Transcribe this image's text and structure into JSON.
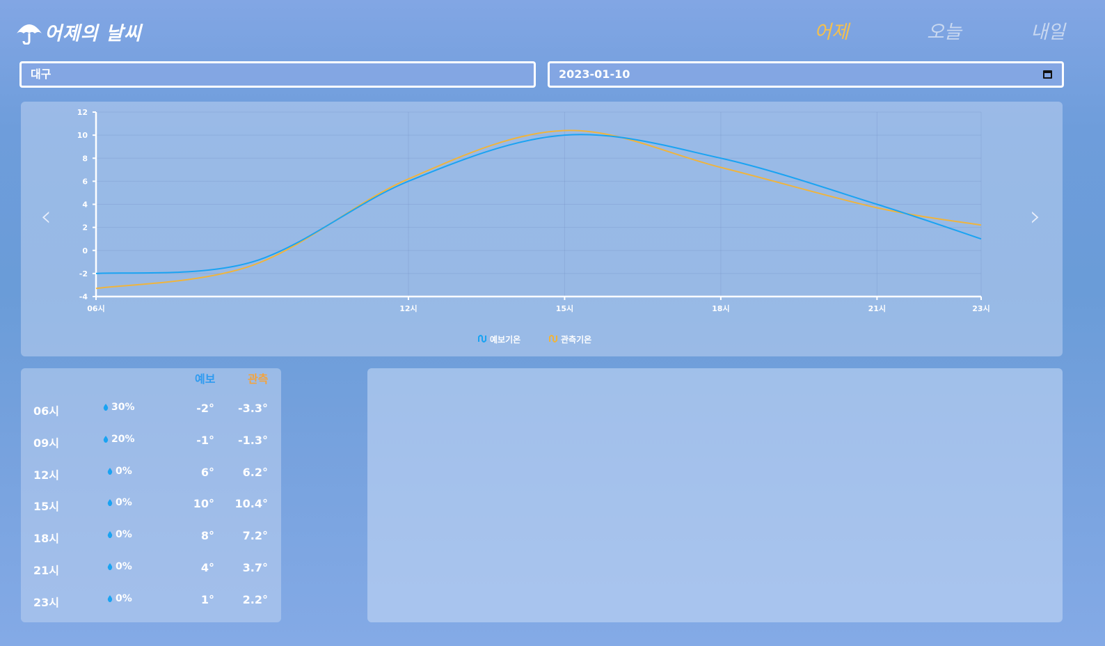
{
  "header": {
    "logo_text": "어제의 날씨",
    "nav": [
      {
        "label": "어제",
        "active": true
      },
      {
        "label": "오늘",
        "active": false
      },
      {
        "label": "내일",
        "active": false
      }
    ]
  },
  "controls": {
    "location_value": "대구",
    "date_value": "2023-01-10"
  },
  "colors": {
    "forecast": "#1aa3f2",
    "observed": "#efb43d",
    "active_nav": "#f6c04c"
  },
  "chart_data": {
    "type": "line",
    "x": [
      "06시",
      "09시",
      "12시",
      "15시",
      "18시",
      "21시",
      "23시"
    ],
    "x_tick_labels": [
      "06시",
      "12시",
      "15시",
      "18시",
      "21시",
      "23시"
    ],
    "series": [
      {
        "name": "예보기온",
        "color": "#1aa3f2",
        "values": [
          -2,
          -1,
          6,
          10,
          8,
          4,
          1
        ]
      },
      {
        "name": "관측기온",
        "color": "#efb43d",
        "values": [
          -3.3,
          -1.3,
          6.2,
          10.4,
          7.2,
          3.7,
          2.2
        ]
      }
    ],
    "ylim": [
      -4,
      12
    ],
    "y_ticks": [
      -4,
      -2,
      0,
      2,
      4,
      6,
      8,
      10,
      12
    ],
    "grid": true,
    "legend": "bottom-center"
  },
  "table": {
    "forecast_header": "예보",
    "observed_header": "관측",
    "rows": [
      {
        "time": "06시",
        "rain": "30%",
        "forecast": "-2°",
        "observed": "-3.3°"
      },
      {
        "time": "09시",
        "rain": "20%",
        "forecast": "-1°",
        "observed": "-1.3°"
      },
      {
        "time": "12시",
        "rain": "0%",
        "forecast": "6°",
        "observed": "6.2°"
      },
      {
        "time": "15시",
        "rain": "0%",
        "forecast": "10°",
        "observed": "10.4°"
      },
      {
        "time": "18시",
        "rain": "0%",
        "forecast": "8°",
        "observed": "7.2°"
      },
      {
        "time": "21시",
        "rain": "0%",
        "forecast": "4°",
        "observed": "3.7°"
      },
      {
        "time": "23시",
        "rain": "0%",
        "forecast": "1°",
        "observed": "2.2°"
      }
    ]
  }
}
